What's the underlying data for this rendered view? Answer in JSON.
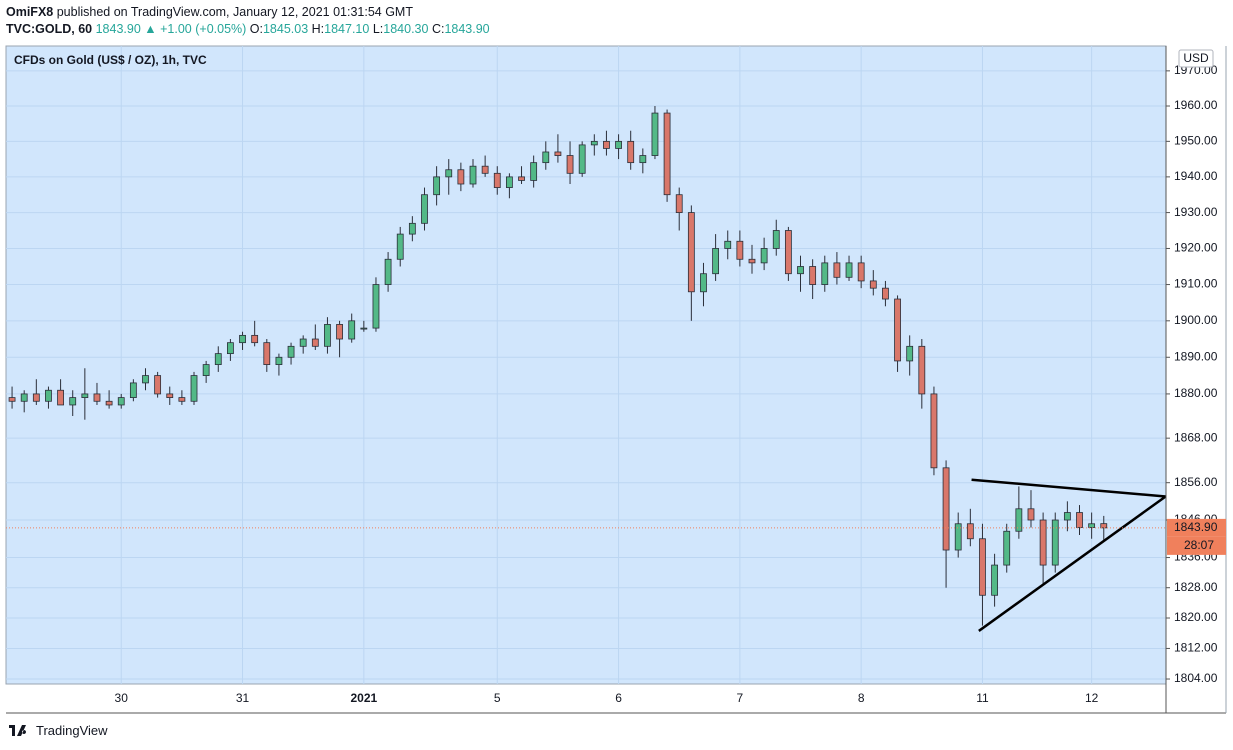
{
  "header": {
    "publisher": "OmiFX8",
    "published": "published on TradingView.com, January 12, 2021 01:31:54 GMT",
    "symbol": "TVC:GOLD, 60",
    "last": "1843.90",
    "change": "▲ +1.00 (+0.05%)",
    "ohlc": [
      {
        "label": "O:",
        "value": "1845.03"
      },
      {
        "label": "H:",
        "value": "1847.10"
      },
      {
        "label": "L:",
        "value": "1840.30"
      },
      {
        "label": "C:",
        "value": "1843.90"
      }
    ]
  },
  "footer": {
    "brand": "TradingView"
  },
  "chart_data": {
    "type": "candlestick",
    "title": "CFDs on Gold (US$ / OZ), 1h, TVC",
    "currency": "USD",
    "log_scale": true,
    "grid": true,
    "up_color": "#53b987",
    "down_color": "#d9776a",
    "categories": [
      null,
      null,
      null,
      null,
      null,
      null,
      null,
      null,
      null,
      "30",
      null,
      null,
      null,
      null,
      null,
      null,
      null,
      null,
      null,
      "31",
      null,
      null,
      null,
      null,
      null,
      null,
      null,
      null,
      null,
      "2021",
      null,
      null,
      null,
      null,
      null,
      null,
      null,
      null,
      null,
      null,
      "5",
      null,
      null,
      null,
      null,
      null,
      null,
      null,
      null,
      null,
      "6",
      null,
      null,
      null,
      null,
      null,
      null,
      null,
      null,
      null,
      "7",
      null,
      null,
      null,
      null,
      null,
      null,
      null,
      null,
      null,
      "8",
      null,
      null,
      null,
      null,
      null,
      null,
      null,
      null,
      null,
      "11",
      null,
      null,
      null,
      null,
      null,
      null,
      null,
      null,
      "12",
      null
    ],
    "open": [
      1879,
      1878,
      1880,
      1878,
      1881,
      1877,
      1879,
      1880,
      1878,
      1877,
      1879,
      1883,
      1885,
      1880,
      1879,
      1878,
      1885,
      1888,
      1891,
      1894,
      1896,
      1894,
      1888,
      1890,
      1893,
      1895,
      1893,
      1899,
      1895,
      1898,
      1898,
      1910,
      1917,
      1924,
      1927,
      1935,
      1940,
      1942,
      1938,
      1943,
      1941,
      1937,
      1940,
      1939,
      1944,
      1947,
      1946,
      1941,
      1949,
      1950,
      1948,
      1950,
      1944,
      1946,
      1958,
      1935,
      1930,
      1908,
      1913,
      1920,
      1922,
      1917,
      1916,
      1920,
      1925,
      1913,
      1915,
      1910,
      1916,
      1912,
      1916,
      1911,
      1909,
      1906,
      1889,
      1893,
      1880,
      1860,
      1838,
      1845,
      1841,
      1826,
      1834,
      1843,
      1849,
      1846,
      1834,
      1846,
      1848,
      1844,
      1845.03
    ],
    "high": [
      1882,
      1881,
      1884,
      1882,
      1884,
      1881,
      1887,
      1883,
      1881,
      1880,
      1884,
      1887,
      1886,
      1882,
      1881,
      1886,
      1889,
      1893,
      1895,
      1897,
      1900,
      1895,
      1891,
      1894,
      1896,
      1899,
      1901,
      1900,
      1902,
      1900,
      1912,
      1919,
      1926,
      1929,
      1937,
      1943,
      1945,
      1944,
      1945,
      1946,
      1943,
      1941,
      1943,
      1946,
      1950,
      1952,
      1950,
      1950,
      1952,
      1953,
      1952,
      1953,
      1948,
      1960,
      1959,
      1937,
      1932,
      1916,
      1924,
      1925,
      1925,
      1921,
      1923,
      1928,
      1926,
      1918,
      1917,
      1918,
      1919,
      1918,
      1918,
      1914,
      1911,
      1907,
      1896,
      1895,
      1882,
      1862,
      1848,
      1849,
      1845,
      1837,
      1845,
      1855,
      1854,
      1848,
      1848,
      1851,
      1850,
      1848,
      1847.1
    ],
    "low": [
      1876,
      1875,
      1877,
      1876,
      1877,
      1874,
      1873,
      1877,
      1876,
      1876,
      1878,
      1881,
      1879,
      1877,
      1877,
      1877,
      1883,
      1886,
      1889,
      1892,
      1893,
      1886,
      1885,
      1888,
      1891,
      1892,
      1891,
      1890,
      1894,
      1897,
      1897,
      1908,
      1915,
      1922,
      1925,
      1932,
      1935,
      1936,
      1937,
      1940,
      1935,
      1934,
      1938,
      1937,
      1942,
      1944,
      1938,
      1940,
      1946,
      1946,
      1945,
      1942,
      1941,
      1945,
      1933,
      1925,
      1900,
      1904,
      1911,
      1917,
      1915,
      1913,
      1914,
      1918,
      1911,
      1908,
      1906,
      1908,
      1910,
      1911,
      1909,
      1907,
      1904,
      1886,
      1885,
      1876,
      1858,
      1828,
      1836,
      1839,
      1818,
      1823,
      1832,
      1841,
      1844,
      1829,
      1832,
      1843,
      1842,
      1841,
      1840.3
    ],
    "close": [
      1878,
      1880,
      1878,
      1881,
      1877,
      1879,
      1880,
      1878,
      1877,
      1879,
      1883,
      1885,
      1880,
      1879,
      1878,
      1885,
      1888,
      1891,
      1894,
      1896,
      1894,
      1888,
      1890,
      1893,
      1895,
      1893,
      1899,
      1895,
      1900,
      1898,
      1910,
      1917,
      1924,
      1927,
      1935,
      1940,
      1942,
      1938,
      1943,
      1941,
      1937,
      1940,
      1939,
      1944,
      1947,
      1946,
      1941,
      1949,
      1950,
      1948,
      1950,
      1944,
      1946,
      1958,
      1935,
      1930,
      1908,
      1913,
      1920,
      1922,
      1917,
      1916,
      1920,
      1925,
      1913,
      1915,
      1910,
      1916,
      1912,
      1916,
      1911,
      1909,
      1906,
      1889,
      1893,
      1880,
      1860,
      1838,
      1845,
      1841,
      1826,
      1834,
      1843,
      1849,
      1846,
      1834,
      1846,
      1848,
      1844,
      1845,
      1843.9
    ],
    "ylim": [
      1802.7,
      1977.1
    ],
    "yticks": [
      {
        "value": 1970,
        "label": "1970.00"
      },
      {
        "value": 1960,
        "label": "1960.00"
      },
      {
        "value": 1950,
        "label": "1950.00"
      },
      {
        "value": 1940,
        "label": "1940.00"
      },
      {
        "value": 1930,
        "label": "1930.00"
      },
      {
        "value": 1920,
        "label": "1920.00"
      },
      {
        "value": 1910,
        "label": "1910.00"
      },
      {
        "value": 1900,
        "label": "1900.00"
      },
      {
        "value": 1890,
        "label": "1890.00"
      },
      {
        "value": 1880,
        "label": "1880.00"
      },
      {
        "value": 1868,
        "label": "1868.00"
      },
      {
        "value": 1856,
        "label": "1856.00"
      },
      {
        "value": 1846,
        "label": "1846.00"
      },
      {
        "value": 1836,
        "label": "1836.00"
      },
      {
        "value": 1828,
        "label": "1828.00"
      },
      {
        "value": 1820,
        "label": "1820.00"
      },
      {
        "value": 1812,
        "label": "1812.00"
      },
      {
        "value": 1804,
        "label": "1804.00"
      }
    ],
    "last_price": {
      "value": 1843.9,
      "label": "1843.90"
    },
    "countdown": "28:07",
    "last_price_color": "#f0805c",
    "trendlines": [
      {
        "x": [
          79.6,
          95.6
        ],
        "y": [
          1856.8,
          1852.3
        ]
      },
      {
        "x": [
          80.2,
          95.6
        ],
        "y": [
          1816.6,
          1852.3
        ]
      }
    ]
  }
}
